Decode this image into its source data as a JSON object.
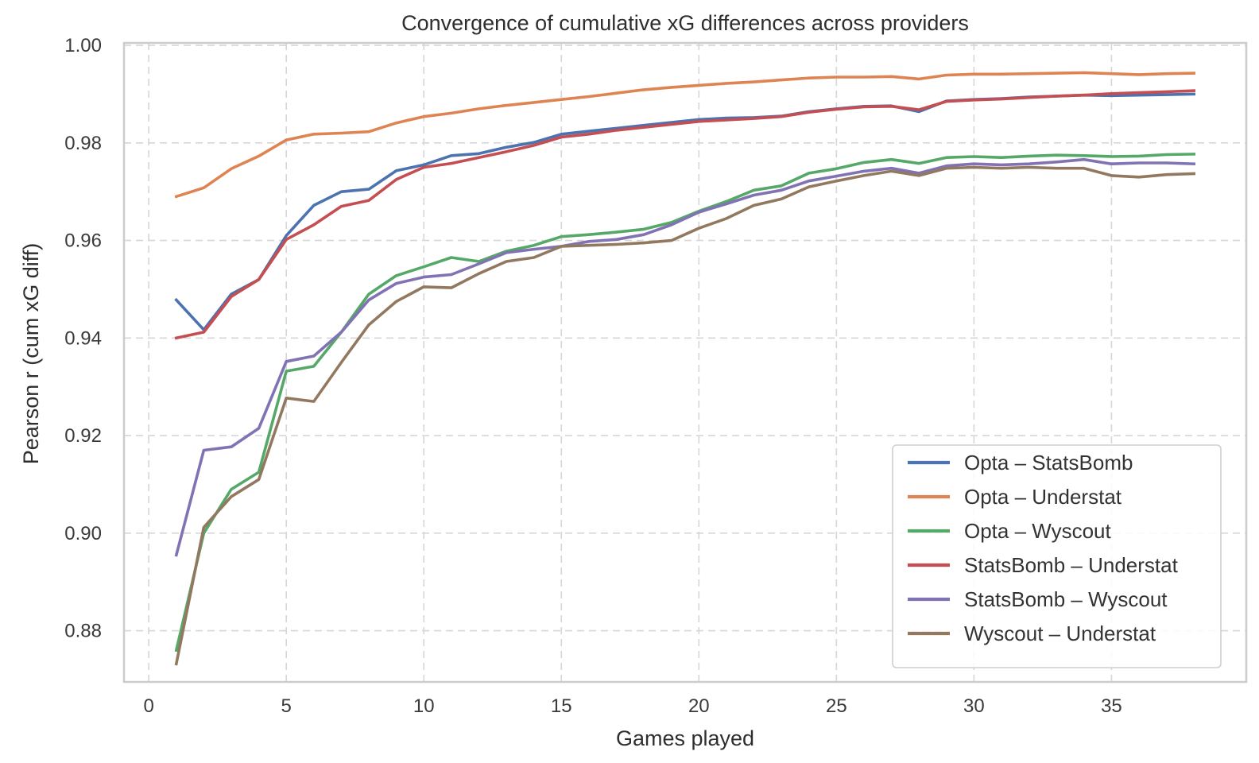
{
  "chart_data": {
    "type": "line",
    "title": "Convergence of cumulative xG differences across providers",
    "xlabel": "Games played",
    "ylabel": "Pearson r (cum xG diff)",
    "xlim": [
      -0.9,
      39.9
    ],
    "ylim": [
      0.8695,
      1.0005
    ],
    "xticks": [
      0,
      5,
      10,
      15,
      20,
      25,
      30,
      35
    ],
    "xtick_labels": [
      "0",
      "5",
      "10",
      "15",
      "20",
      "25",
      "30",
      "35"
    ],
    "yticks": [
      0.88,
      0.9,
      0.92,
      0.94,
      0.96,
      0.98,
      1.0
    ],
    "ytick_labels": [
      "0.88",
      "0.90",
      "0.92",
      "0.94",
      "0.96",
      "0.98",
      "1.00"
    ],
    "grid": true,
    "legend_position": "lower-right",
    "x": [
      1,
      2,
      3,
      4,
      5,
      6,
      7,
      8,
      9,
      10,
      11,
      12,
      13,
      14,
      15,
      16,
      17,
      18,
      19,
      20,
      21,
      22,
      23,
      24,
      25,
      26,
      27,
      28,
      29,
      30,
      31,
      32,
      33,
      34,
      35,
      36,
      37,
      38
    ],
    "series": [
      {
        "name": "Opta – StatsBomb",
        "color": "#4c72b0",
        "values": [
          0.9478,
          0.9417,
          0.949,
          0.952,
          0.961,
          0.9672,
          0.97,
          0.9705,
          0.9743,
          0.9755,
          0.9774,
          0.9778,
          0.9791,
          0.9801,
          0.9818,
          0.9824,
          0.983,
          0.9836,
          0.9842,
          0.9848,
          0.9851,
          0.9852,
          0.9855,
          0.9864,
          0.987,
          0.9875,
          0.9876,
          0.9864,
          0.9886,
          0.9889,
          0.9891,
          0.9894,
          0.9896,
          0.9898,
          0.9897,
          0.9898,
          0.9899,
          0.99
        ]
      },
      {
        "name": "Opta – Understat",
        "color": "#dd8452",
        "values": [
          0.969,
          0.9708,
          0.9747,
          0.9773,
          0.9806,
          0.9818,
          0.982,
          0.9823,
          0.9841,
          0.9854,
          0.9861,
          0.987,
          0.9877,
          0.9883,
          0.9889,
          0.9895,
          0.9902,
          0.9909,
          0.9914,
          0.9918,
          0.9922,
          0.9925,
          0.9929,
          0.9933,
          0.9935,
          0.9935,
          0.9936,
          0.9931,
          0.9939,
          0.9941,
          0.9941,
          0.9942,
          0.9943,
          0.9944,
          0.9942,
          0.994,
          0.9942,
          0.9943
        ]
      },
      {
        "name": "Opta – Wyscout",
        "color": "#55a868",
        "values": [
          0.876,
          0.9,
          0.909,
          0.9125,
          0.9332,
          0.9342,
          0.9412,
          0.949,
          0.9528,
          0.9546,
          0.9565,
          0.9557,
          0.9578,
          0.959,
          0.9608,
          0.9612,
          0.9617,
          0.9623,
          0.9637,
          0.966,
          0.968,
          0.9703,
          0.9712,
          0.9738,
          0.9747,
          0.976,
          0.9766,
          0.9758,
          0.977,
          0.9772,
          0.977,
          0.9773,
          0.9775,
          0.9774,
          0.9772,
          0.9773,
          0.9776,
          0.9777
        ]
      },
      {
        "name": "StatsBomb – Understat",
        "color": "#c44e52",
        "values": [
          0.94,
          0.9412,
          0.9485,
          0.952,
          0.9602,
          0.9632,
          0.967,
          0.9682,
          0.9725,
          0.975,
          0.9758,
          0.977,
          0.9782,
          0.9795,
          0.9812,
          0.9818,
          0.9826,
          0.9832,
          0.9838,
          0.9844,
          0.9847,
          0.985,
          0.9854,
          0.9863,
          0.9869,
          0.9874,
          0.9875,
          0.9868,
          0.9885,
          0.9888,
          0.989,
          0.9893,
          0.9896,
          0.9898,
          0.9901,
          0.9903,
          0.9905,
          0.9907
        ]
      },
      {
        "name": "StatsBomb – Wyscout",
        "color": "#8172b3",
        "values": [
          0.8955,
          0.917,
          0.9177,
          0.9215,
          0.9352,
          0.9363,
          0.9412,
          0.9478,
          0.9512,
          0.9525,
          0.953,
          0.9552,
          0.9575,
          0.9582,
          0.9588,
          0.9598,
          0.9602,
          0.9612,
          0.9632,
          0.9658,
          0.9675,
          0.9693,
          0.9703,
          0.9722,
          0.9732,
          0.9742,
          0.9748,
          0.9738,
          0.9753,
          0.9757,
          0.9755,
          0.9757,
          0.9761,
          0.9766,
          0.9757,
          0.9759,
          0.9759,
          0.9757
        ]
      },
      {
        "name": "Wyscout – Understat",
        "color": "#937860",
        "values": [
          0.8732,
          0.9012,
          0.9075,
          0.911,
          0.9277,
          0.927,
          0.935,
          0.9427,
          0.9475,
          0.9505,
          0.9503,
          0.9532,
          0.9557,
          0.9565,
          0.9588,
          0.959,
          0.9592,
          0.9595,
          0.96,
          0.9625,
          0.9645,
          0.9672,
          0.9685,
          0.971,
          0.9722,
          0.9733,
          0.9742,
          0.9733,
          0.9748,
          0.975,
          0.9748,
          0.975,
          0.9748,
          0.9748,
          0.9733,
          0.973,
          0.9735,
          0.9737
        ]
      }
    ]
  }
}
